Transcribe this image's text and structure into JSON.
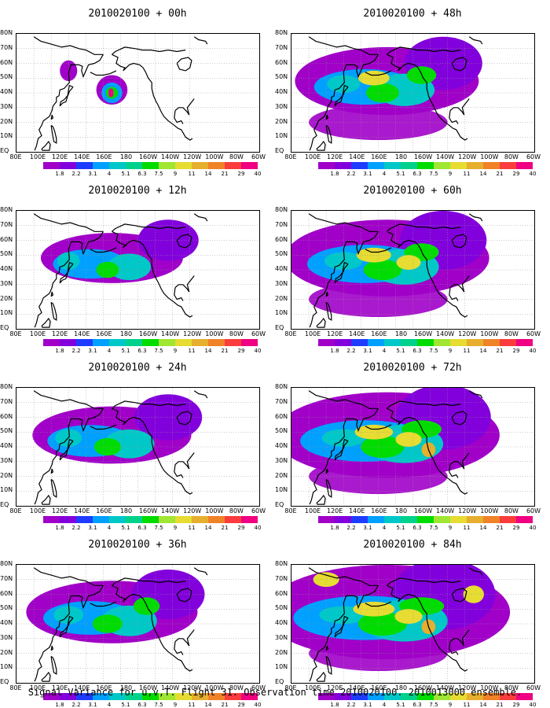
{
  "panels": [
    {
      "title": "2010020100 + 00h",
      "level": 0
    },
    {
      "title": "2010020100 + 48h",
      "level": 3
    },
    {
      "title": "2010020100 + 12h",
      "level": 1
    },
    {
      "title": "2010020100 + 60h",
      "level": 4
    },
    {
      "title": "2010020100 + 24h",
      "level": 1.8
    },
    {
      "title": "2010020100 + 72h",
      "level": 5
    },
    {
      "title": "2010020100 + 36h",
      "level": 2.4
    },
    {
      "title": "2010020100 + 84h",
      "level": 6
    }
  ],
  "lat_labels": [
    "80N",
    "70N",
    "60N",
    "50N",
    "40N",
    "30N",
    "20N",
    "10N",
    "EQ"
  ],
  "lon_labels": [
    "80E",
    "100E",
    "120E",
    "140E",
    "160E",
    "180",
    "160W",
    "140W",
    "120W",
    "100W",
    "80W",
    "60W"
  ],
  "colorbar": {
    "colors": [
      "#a000c8",
      "#8200dc",
      "#1e3cff",
      "#00a0ff",
      "#00c8c8",
      "#00d28c",
      "#00dc00",
      "#a0e632",
      "#e6dc32",
      "#e6af2d",
      "#f08228",
      "#fa3c3c",
      "#f00082"
    ],
    "labels": [
      "1.8",
      "2.2",
      "3.1",
      "4",
      "5.1",
      "6.3",
      "7.5",
      "9",
      "11",
      "14",
      "21",
      "29",
      "40"
    ]
  },
  "caption": "Signal Variance for u,v,T. Flight 31. Observation time 2010020100. 2010013000 ensemble."
}
